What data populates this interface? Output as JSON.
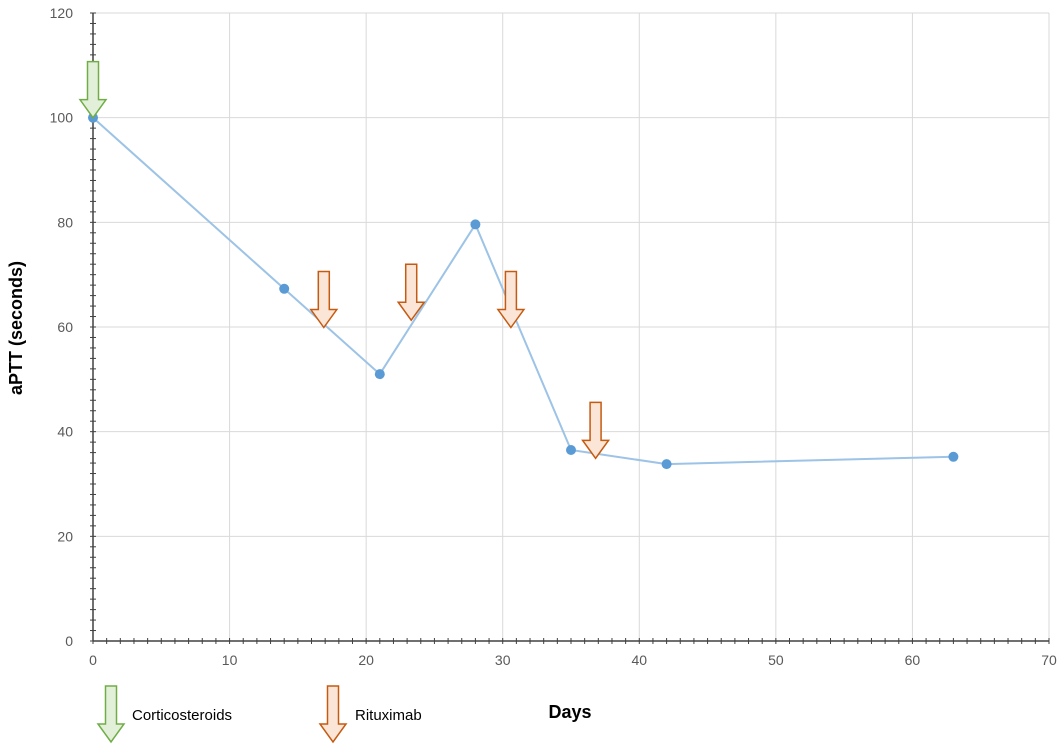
{
  "chart_data": {
    "type": "line",
    "title": "",
    "xlabel": "Days",
    "ylabel": "aPTT (seconds)",
    "xlim": [
      0,
      70
    ],
    "ylim": [
      0,
      120
    ],
    "x_ticks": [
      0,
      10,
      20,
      30,
      40,
      50,
      60,
      70
    ],
    "y_ticks": [
      0,
      20,
      40,
      60,
      80,
      100,
      120
    ],
    "grid": true,
    "series": [
      {
        "x": [
          0,
          14,
          21,
          28,
          35,
          42,
          63
        ],
        "y": [
          100,
          67.3,
          51,
          79.6,
          36.5,
          33.8,
          35.2
        ],
        "color": "#9dc3e6",
        "marker_color": "#5b9bd5"
      }
    ],
    "annotations": [
      {
        "label": "Corticosteroids",
        "x": 0,
        "y": 100,
        "color": "#70ad47",
        "fill": "#e2f0d9"
      },
      {
        "label": "Rituximab",
        "x": 16.9,
        "y": 59.9,
        "color": "#c55a11",
        "fill": "#fbe5d6"
      },
      {
        "label": "Rituximab",
        "x": 23.3,
        "y": 61.3,
        "color": "#c55a11",
        "fill": "#fbe5d6"
      },
      {
        "label": "Rituximab",
        "x": 30.6,
        "y": 59.9,
        "color": "#c55a11",
        "fill": "#fbe5d6"
      },
      {
        "label": "Rituximab",
        "x": 36.8,
        "y": 34.9,
        "color": "#c55a11",
        "fill": "#fbe5d6"
      }
    ],
    "legend": [
      {
        "label": "Corticosteroids",
        "color": "#70ad47",
        "fill": "#e2f0d9"
      },
      {
        "label": "Rituximab",
        "color": "#c55a11",
        "fill": "#fbe5d6"
      }
    ],
    "legend_position": "bottom-left"
  }
}
